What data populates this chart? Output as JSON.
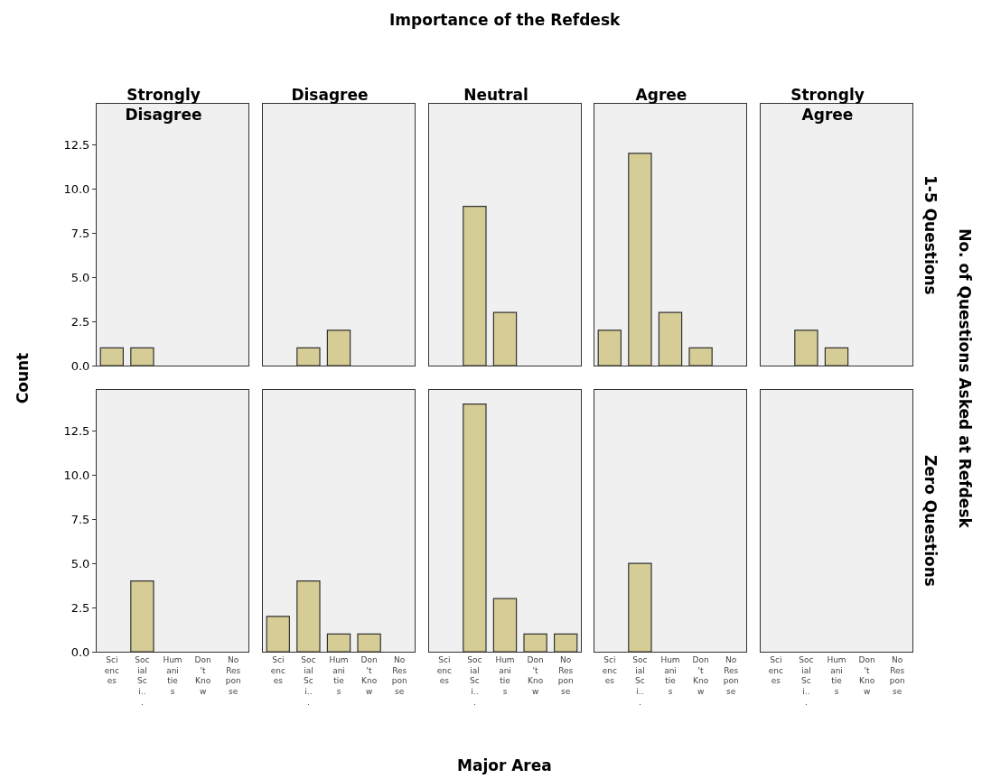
{
  "chart_data": [
    {
      "type": "bar",
      "title": "Strongly Disagree",
      "annotations": [
        "Importance of the Refdesk"
      ],
      "categories": [
        "Sciences",
        "Social Sci...",
        "Humanities",
        "Don't Know",
        "No Response"
      ],
      "values": [
        1,
        1,
        0,
        0,
        0
      ],
      "color": "#d6cc96",
      "ylim": [
        0,
        14.8
      ],
      "yticks": [
        {
          "value": 0,
          "label": "0.0"
        },
        {
          "value": 2.5,
          "label": "2.5"
        },
        {
          "value": 5,
          "label": "5.0"
        },
        {
          "value": 7.5,
          "label": "7.5"
        },
        {
          "value": 10,
          "label": "10.0"
        },
        {
          "value": 12.5,
          "label": "12.5"
        }
      ],
      "grid": false,
      "tick_labels": "y"
    },
    {
      "type": "bar",
      "title": "Disagree",
      "categories": [
        "Sciences",
        "Social Sci...",
        "Humanities",
        "Don't Know",
        "No Response"
      ],
      "values": [
        0,
        1,
        2,
        0,
        0
      ],
      "color": "#d6cc96",
      "ylim": [
        0,
        14.8
      ],
      "yticks": [
        {
          "value": 0,
          "label": "0.0"
        },
        {
          "value": 2.5,
          "label": "2.5"
        },
        {
          "value": 5,
          "label": "5.0"
        },
        {
          "value": 7.5,
          "label": "7.5"
        },
        {
          "value": 10,
          "label": "10.0"
        },
        {
          "value": 12.5,
          "label": "12.5"
        }
      ],
      "grid": false,
      "tick_labels": false
    },
    {
      "type": "bar",
      "title": "Neutral",
      "categories": [
        "Sciences",
        "Social Sci...",
        "Humanities",
        "Don't Know",
        "No Response"
      ],
      "values": [
        0,
        9,
        3,
        0,
        0
      ],
      "color": "#d6cc96",
      "ylim": [
        0,
        14.8
      ],
      "yticks": [
        {
          "value": 0,
          "label": "0.0"
        },
        {
          "value": 2.5,
          "label": "2.5"
        },
        {
          "value": 5,
          "label": "5.0"
        },
        {
          "value": 7.5,
          "label": "7.5"
        },
        {
          "value": 10,
          "label": "10.0"
        },
        {
          "value": 12.5,
          "label": "12.5"
        }
      ],
      "grid": false,
      "tick_labels": false
    },
    {
      "type": "bar",
      "title": "Agree",
      "categories": [
        "Sciences",
        "Social Sci...",
        "Humanities",
        "Don't Know",
        "No Response"
      ],
      "values": [
        2,
        12,
        3,
        1,
        0
      ],
      "color": "#d6cc96",
      "ylim": [
        0,
        14.8
      ],
      "yticks": [
        {
          "value": 0,
          "label": "0.0"
        },
        {
          "value": 2.5,
          "label": "2.5"
        },
        {
          "value": 5,
          "label": "5.0"
        },
        {
          "value": 7.5,
          "label": "7.5"
        },
        {
          "value": 10,
          "label": "10.0"
        },
        {
          "value": 12.5,
          "label": "12.5"
        }
      ],
      "grid": false,
      "tick_labels": false
    },
    {
      "type": "bar",
      "title": "Strongly Agree",
      "y2label": "1-5 Questions",
      "annotations": [
        "No. of Questions Asked at Refdesk"
      ],
      "categories": [
        "Sciences",
        "Social Sci...",
        "Humanities",
        "Don't Know",
        "No Response"
      ],
      "values": [
        0,
        2,
        1,
        0,
        0
      ],
      "color": "#d6cc96",
      "ylim": [
        0,
        14.8
      ],
      "yticks": [
        {
          "value": 0,
          "label": "0.0"
        },
        {
          "value": 2.5,
          "label": "2.5"
        },
        {
          "value": 5,
          "label": "5.0"
        },
        {
          "value": 7.5,
          "label": "7.5"
        },
        {
          "value": 10,
          "label": "10.0"
        },
        {
          "value": 12.5,
          "label": "12.5"
        }
      ],
      "grid": false,
      "tick_labels": false
    },
    {
      "type": "bar",
      "ylabel": "Count",
      "categories": [
        "Sciences",
        "Social Sci...",
        "Humanities",
        "Don't Know",
        "No Response"
      ],
      "values": [
        0,
        4,
        0,
        0,
        0
      ],
      "color": "#d6cc96",
      "ylim": [
        0,
        14.8
      ],
      "yticks": [
        {
          "value": 0,
          "label": "0.0"
        },
        {
          "value": 2.5,
          "label": "2.5"
        },
        {
          "value": 5,
          "label": "5.0"
        },
        {
          "value": 7.5,
          "label": "7.5"
        },
        {
          "value": 10,
          "label": "10.0"
        },
        {
          "value": 12.5,
          "label": "12.5"
        }
      ],
      "grid": false
    },
    {
      "type": "bar",
      "categories": [
        "Sciences",
        "Social Sci...",
        "Humanities",
        "Don't Know",
        "No Response"
      ],
      "values": [
        2,
        4,
        1,
        1,
        0
      ],
      "color": "#d6cc96",
      "ylim": [
        0,
        14.8
      ],
      "yticks": [
        {
          "value": 0,
          "label": "0.0"
        },
        {
          "value": 2.5,
          "label": "2.5"
        },
        {
          "value": 5,
          "label": "5.0"
        },
        {
          "value": 7.5,
          "label": "7.5"
        },
        {
          "value": 10,
          "label": "10.0"
        },
        {
          "value": 12.5,
          "label": "12.5"
        }
      ],
      "grid": false,
      "tick_labels": "x"
    },
    {
      "type": "bar",
      "xlabel": "Major Area",
      "categories": [
        "Sciences",
        "Social Sci...",
        "Humanities",
        "Don't Know",
        "No Response"
      ],
      "values": [
        0,
        14,
        3,
        1,
        1
      ],
      "color": "#d6cc96",
      "ylim": [
        0,
        14.8
      ],
      "yticks": [
        {
          "value": 0,
          "label": "0.0"
        },
        {
          "value": 2.5,
          "label": "2.5"
        },
        {
          "value": 5,
          "label": "5.0"
        },
        {
          "value": 7.5,
          "label": "7.5"
        },
        {
          "value": 10,
          "label": "10.0"
        },
        {
          "value": 12.5,
          "label": "12.5"
        }
      ],
      "grid": false,
      "tick_labels": "x"
    },
    {
      "type": "bar",
      "categories": [
        "Sciences",
        "Social Sci...",
        "Humanities",
        "Don't Know",
        "No Response"
      ],
      "values": [
        0,
        5,
        0,
        0,
        0
      ],
      "color": "#d6cc96",
      "ylim": [
        0,
        14.8
      ],
      "yticks": [
        {
          "value": 0,
          "label": "0.0"
        },
        {
          "value": 2.5,
          "label": "2.5"
        },
        {
          "value": 5,
          "label": "5.0"
        },
        {
          "value": 7.5,
          "label": "7.5"
        },
        {
          "value": 10,
          "label": "10.0"
        },
        {
          "value": 12.5,
          "label": "12.5"
        }
      ],
      "grid": false,
      "tick_labels": "x"
    },
    {
      "type": "bar",
      "y2label": "Zero Questions",
      "categories": [
        "Sciences",
        "Social Sci...",
        "Humanities",
        "Don't Know",
        "No Response"
      ],
      "values": [
        0,
        0,
        0,
        0,
        0
      ],
      "color": "#d6cc96",
      "ylim": [
        0,
        14.8
      ],
      "yticks": [
        {
          "value": 0,
          "label": "0.0"
        },
        {
          "value": 2.5,
          "label": "2.5"
        },
        {
          "value": 5,
          "label": "5.0"
        },
        {
          "value": 7.5,
          "label": "7.5"
        },
        {
          "value": 10,
          "label": "10.0"
        },
        {
          "value": 12.5,
          "label": "12.5"
        }
      ],
      "grid": false,
      "tick_labels": "x"
    }
  ]
}
